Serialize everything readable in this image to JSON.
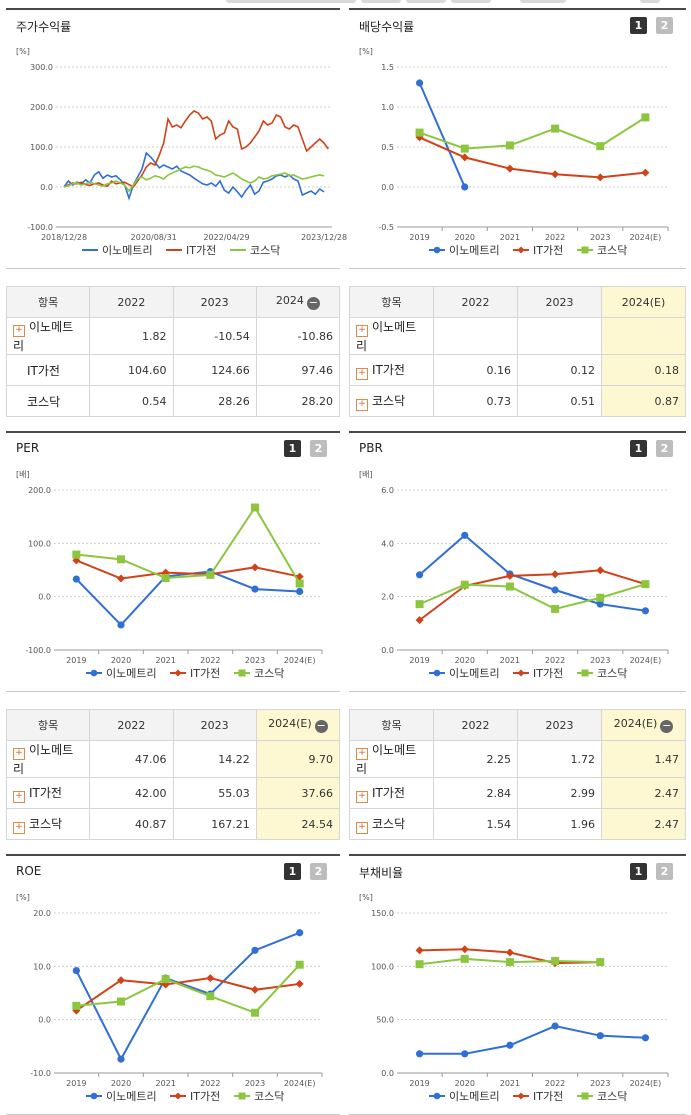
{
  "colors": {
    "s0": "#2f6fd6",
    "s1": "#d2421a",
    "s2": "#8cc63f"
  },
  "legend": [
    "이노메트리",
    "IT가전",
    "코스닥"
  ],
  "panels": [
    {
      "id": "p1",
      "title": "주가수익률",
      "buttons": []
    },
    {
      "id": "p2",
      "title": "배당수익률",
      "buttons": [
        "1",
        "2"
      ]
    },
    {
      "id": "p3",
      "title": "PER",
      "buttons": [
        "1",
        "2"
      ]
    },
    {
      "id": "p4",
      "title": "PBR",
      "buttons": [
        "1",
        "2"
      ]
    },
    {
      "id": "p5",
      "title": "ROE",
      "buttons": [
        "1",
        "2"
      ]
    },
    {
      "id": "p6",
      "title": "부채비율",
      "buttons": [
        "1",
        "2"
      ]
    }
  ],
  "tables": [
    {
      "id": "t1",
      "header": [
        "항목",
        "2022",
        "2023",
        "2024"
      ],
      "est_col": false,
      "minus": true,
      "rows": [
        {
          "name": "이노메트리",
          "plus": true,
          "cells": [
            "1.82",
            "-10.54",
            "-10.86"
          ]
        },
        {
          "name": "IT가전",
          "plus": false,
          "cells": [
            "104.60",
            "124.66",
            "97.46"
          ]
        },
        {
          "name": "코스닥",
          "plus": false,
          "cells": [
            "0.54",
            "28.26",
            "28.20"
          ]
        }
      ]
    },
    {
      "id": "t2",
      "header": [
        "항목",
        "2022",
        "2023",
        "2024(E)"
      ],
      "est_col": true,
      "minus": false,
      "rows": [
        {
          "name": "이노메트리",
          "plus": true,
          "cells": [
            "",
            "",
            ""
          ]
        },
        {
          "name": "IT가전",
          "plus": true,
          "cells": [
            "0.16",
            "0.12",
            "0.18"
          ]
        },
        {
          "name": "코스닥",
          "plus": true,
          "cells": [
            "0.73",
            "0.51",
            "0.87"
          ]
        }
      ]
    },
    {
      "id": "t3",
      "header": [
        "항목",
        "2022",
        "2023",
        "2024(E)"
      ],
      "est_col": true,
      "minus": true,
      "rows": [
        {
          "name": "이노메트리",
          "plus": true,
          "cells": [
            "47.06",
            "14.22",
            "9.70"
          ]
        },
        {
          "name": "IT가전",
          "plus": true,
          "cells": [
            "42.00",
            "55.03",
            "37.66"
          ]
        },
        {
          "name": "코스닥",
          "plus": true,
          "cells": [
            "40.87",
            "167.21",
            "24.54"
          ]
        }
      ]
    },
    {
      "id": "t4",
      "header": [
        "항목",
        "2022",
        "2023",
        "2024(E)"
      ],
      "est_col": true,
      "minus": true,
      "rows": [
        {
          "name": "이노메트리",
          "plus": true,
          "cells": [
            "2.25",
            "1.72",
            "1.47"
          ]
        },
        {
          "name": "IT가전",
          "plus": true,
          "cells": [
            "2.84",
            "2.99",
            "2.47"
          ]
        },
        {
          "name": "코스닥",
          "plus": true,
          "cells": [
            "1.54",
            "1.96",
            "2.47"
          ]
        }
      ]
    }
  ],
  "chart_data": [
    {
      "id": "c1",
      "type": "line",
      "title": "주가수익률",
      "unit": "[%]",
      "ylim": [
        -100,
        300
      ],
      "yticks": [
        "300.0",
        "200.0",
        "100.0",
        "0.0",
        "-100.0"
      ],
      "xticks": [
        "2018/12/28",
        "2020/08/31",
        "2022/04/29",
        "2023/12/28"
      ],
      "series": [
        {
          "name": "이노메트리",
          "values": [
            0,
            15,
            5,
            12,
            8,
            18,
            10,
            30,
            38,
            22,
            30,
            25,
            28,
            18,
            5,
            -28,
            5,
            25,
            45,
            85,
            75,
            62,
            48,
            55,
            50,
            45,
            52,
            40,
            35,
            30,
            22,
            15,
            8,
            5,
            10,
            2,
            15,
            -8,
            -15,
            0,
            -12,
            -25,
            -8,
            5,
            -18,
            -10,
            12,
            15,
            20,
            28,
            30,
            25,
            30,
            20,
            15,
            -20,
            -15,
            -10,
            -18,
            -5,
            -12
          ]
        },
        {
          "name": "IT가전",
          "values": [
            0,
            5,
            10,
            8,
            12,
            6,
            4,
            8,
            10,
            5,
            2,
            15,
            8,
            10,
            12,
            6,
            0,
            15,
            30,
            50,
            60,
            55,
            80,
            110,
            170,
            150,
            155,
            148,
            165,
            180,
            190,
            185,
            170,
            175,
            165,
            120,
            130,
            135,
            165,
            150,
            145,
            95,
            100,
            110,
            125,
            140,
            165,
            155,
            160,
            180,
            175,
            150,
            145,
            155,
            150,
            120,
            90,
            100,
            110,
            120,
            110,
            95
          ]
        },
        {
          "name": "코스닥",
          "values": [
            0,
            3,
            8,
            10,
            5,
            8,
            12,
            8,
            5,
            2,
            8,
            10,
            15,
            10,
            5,
            -10,
            5,
            20,
            25,
            18,
            22,
            28,
            25,
            20,
            30,
            35,
            40,
            45,
            50,
            48,
            52,
            50,
            45,
            42,
            38,
            30,
            28,
            25,
            30,
            35,
            28,
            20,
            15,
            10,
            15,
            25,
            20,
            22,
            28,
            30,
            32,
            35,
            28,
            30,
            25,
            20,
            22,
            25,
            28,
            30,
            28
          ]
        }
      ]
    },
    {
      "id": "c2",
      "type": "line",
      "title": "배당수익률",
      "unit": "[%]",
      "ylim": [
        -0.5,
        1.5
      ],
      "yticks": [
        "1.5",
        "1.0",
        "0.5",
        "0.0",
        "-0.5"
      ],
      "categories": [
        "2019",
        "2020",
        "2021",
        "2022",
        "2023",
        "2024(E)"
      ],
      "series": [
        {
          "name": "이노메트리",
          "values": [
            1.3,
            0.0,
            null,
            null,
            null,
            null
          ]
        },
        {
          "name": "IT가전",
          "values": [
            0.62,
            0.37,
            0.23,
            0.16,
            0.12,
            0.18
          ]
        },
        {
          "name": "코스닥",
          "values": [
            0.68,
            0.48,
            0.52,
            0.73,
            0.51,
            0.87
          ]
        }
      ]
    },
    {
      "id": "c3",
      "type": "line",
      "title": "PER",
      "unit": "[배]",
      "ylim": [
        -100,
        200
      ],
      "yticks": [
        "200.0",
        "100.0",
        "0.0",
        "-100.0"
      ],
      "categories": [
        "2019",
        "2020",
        "2021",
        "2022",
        "2023",
        "2024(E)"
      ],
      "series": [
        {
          "name": "이노메트리",
          "values": [
            33,
            -53,
            38,
            47.06,
            14.22,
            9.7
          ]
        },
        {
          "name": "IT가전",
          "values": [
            68,
            34,
            45,
            42.0,
            55.03,
            37.66
          ]
        },
        {
          "name": "코스닥",
          "values": [
            79,
            70,
            35,
            40.87,
            167.21,
            24.54
          ]
        }
      ]
    },
    {
      "id": "c4",
      "type": "line",
      "title": "PBR",
      "unit": "[배]",
      "ylim": [
        0,
        6
      ],
      "yticks": [
        "6.0",
        "4.0",
        "2.0",
        "0.0"
      ],
      "categories": [
        "2019",
        "2020",
        "2021",
        "2022",
        "2023",
        "2024(E)"
      ],
      "series": [
        {
          "name": "이노메트리",
          "values": [
            2.82,
            4.3,
            2.85,
            2.25,
            1.72,
            1.47
          ]
        },
        {
          "name": "IT가전",
          "values": [
            1.12,
            2.4,
            2.78,
            2.84,
            2.99,
            2.47
          ]
        },
        {
          "name": "코스닥",
          "values": [
            1.72,
            2.45,
            2.38,
            1.54,
            1.96,
            2.47
          ]
        }
      ]
    },
    {
      "id": "c5",
      "type": "line",
      "title": "ROE",
      "unit": "[%]",
      "ylim": [
        -10,
        20
      ],
      "yticks": [
        "20.0",
        "10.0",
        "0.0",
        "-10.0"
      ],
      "categories": [
        "2019",
        "2020",
        "2021",
        "2022",
        "2023",
        "2024(E)"
      ],
      "series": [
        {
          "name": "이노메트리",
          "values": [
            9.2,
            -7.4,
            7.8,
            4.8,
            13.0,
            16.3
          ]
        },
        {
          "name": "IT가전",
          "values": [
            1.7,
            7.4,
            6.6,
            7.8,
            5.6,
            6.7
          ]
        },
        {
          "name": "코스닥",
          "values": [
            2.6,
            3.4,
            7.6,
            4.4,
            1.3,
            10.3
          ]
        }
      ]
    },
    {
      "id": "c6",
      "type": "line",
      "title": "부채비율",
      "unit": "[%]",
      "ylim": [
        0,
        150
      ],
      "yticks": [
        "150.0",
        "100.0",
        "50.0",
        "0.0"
      ],
      "categories": [
        "2019",
        "2020",
        "2021",
        "2022",
        "2023",
        "2024(E)"
      ],
      "series": [
        {
          "name": "이노메트리",
          "values": [
            18,
            18,
            26,
            44,
            35,
            33
          ]
        },
        {
          "name": "IT가전",
          "values": [
            115,
            116,
            113,
            103,
            104,
            null
          ]
        },
        {
          "name": "코스닥",
          "values": [
            102,
            107,
            104,
            105,
            104,
            null
          ]
        }
      ]
    }
  ]
}
